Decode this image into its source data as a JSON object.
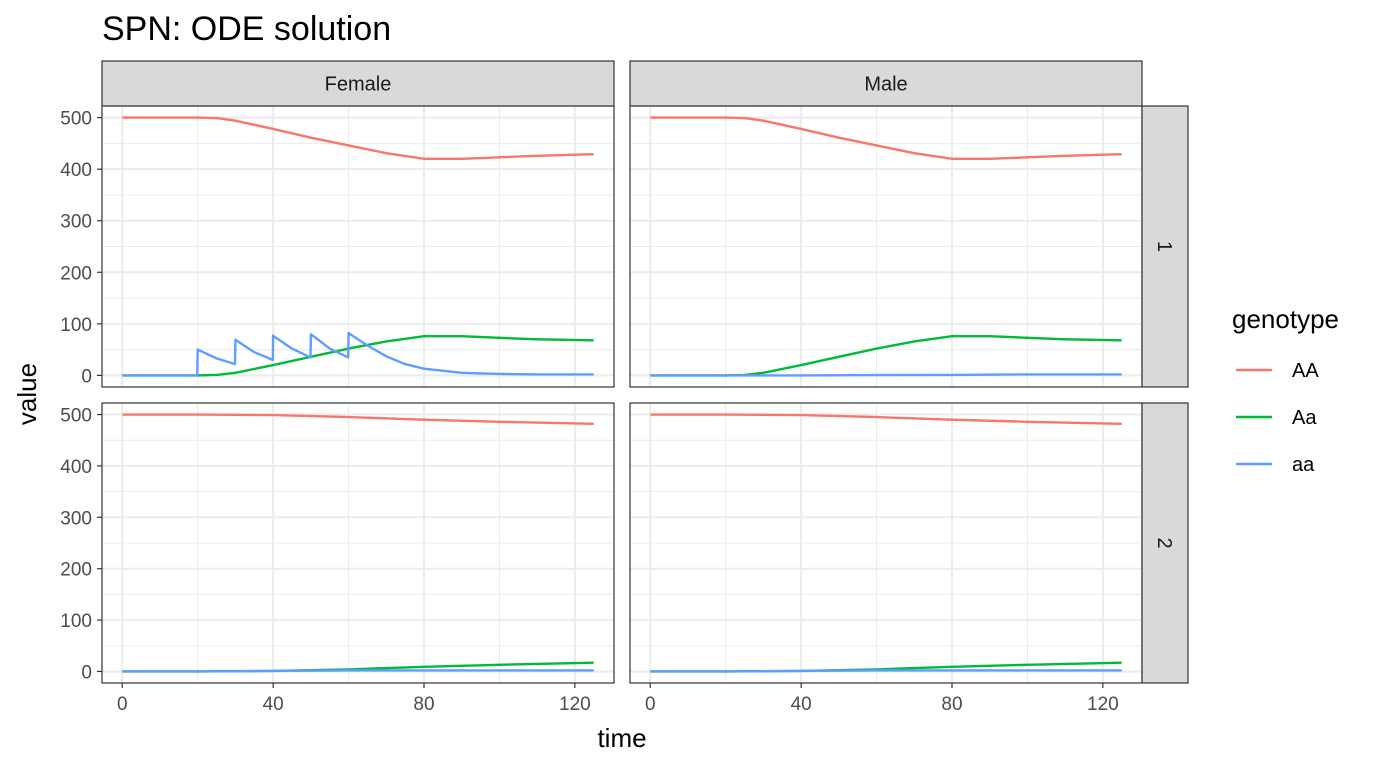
{
  "chart_data": {
    "type": "line",
    "title": "SPN: ODE solution",
    "xlabel": "time",
    "ylabel": "value",
    "xlim": [
      0,
      125
    ],
    "ylim": [
      0,
      500
    ],
    "x_ticks": [
      0,
      40,
      80,
      120
    ],
    "y_ticks": [
      0,
      100,
      200,
      300,
      400,
      500
    ],
    "grid": true,
    "legend": {
      "title": "genotype",
      "position": "right",
      "entries": [
        {
          "name": "AA",
          "color": "#F8766D"
        },
        {
          "name": "Aa",
          "color": "#00BA38"
        },
        {
          "name": "aa",
          "color": "#619CFF"
        }
      ]
    },
    "facet_cols": [
      "Female",
      "Male"
    ],
    "facet_rows": [
      "1",
      "2"
    ],
    "panels": [
      {
        "col": "Female",
        "row": "1",
        "series": [
          {
            "name": "AA",
            "x": [
              0,
              10,
              20,
              25,
              30,
              40,
              50,
              60,
              70,
              80,
              90,
              100,
              110,
              125
            ],
            "values": [
              500,
              500,
              500,
              499,
              494,
              478,
              461,
              446,
              431,
              420,
              420,
              423,
              426,
              429
            ]
          },
          {
            "name": "Aa",
            "x": [
              0,
              10,
              20,
              25,
              30,
              40,
              50,
              60,
              70,
              80,
              90,
              100,
              110,
              125
            ],
            "values": [
              0,
              0,
              0,
              1,
              5,
              20,
              36,
              52,
              66,
              76,
              76,
              73,
              70,
              68
            ]
          },
          {
            "name": "aa",
            "x": [
              0,
              19.9,
              20,
              25,
              29.9,
              30,
              35,
              39.9,
              40,
              45,
              49.9,
              50,
              55,
              59.9,
              60,
              65,
              70,
              75,
              80,
              90,
              100,
              110,
              125
            ],
            "values": [
              0,
              0,
              50,
              33,
              22,
              69,
              45,
              30,
              77,
              52,
              35,
              80,
              52,
              35,
              82,
              58,
              37,
              22,
              13,
              5,
              3,
              2,
              2
            ]
          }
        ]
      },
      {
        "col": "Male",
        "row": "1",
        "series": [
          {
            "name": "AA",
            "x": [
              0,
              10,
              20,
              25,
              30,
              40,
              50,
              60,
              70,
              80,
              90,
              100,
              110,
              125
            ],
            "values": [
              500,
              500,
              500,
              499,
              494,
              478,
              461,
              446,
              431,
              420,
              420,
              423,
              426,
              429
            ]
          },
          {
            "name": "Aa",
            "x": [
              0,
              10,
              20,
              25,
              30,
              40,
              50,
              60,
              70,
              80,
              90,
              100,
              110,
              125
            ],
            "values": [
              0,
              0,
              0,
              1,
              5,
              20,
              36,
              52,
              66,
              76,
              76,
              73,
              70,
              68
            ]
          },
          {
            "name": "aa",
            "x": [
              0,
              20,
              40,
              60,
              80,
              100,
              125
            ],
            "values": [
              0,
              0,
              0,
              0.5,
              1,
              2,
              2
            ]
          }
        ]
      },
      {
        "col": "Female",
        "row": "2",
        "series": [
          {
            "name": "AA",
            "x": [
              0,
              20,
              40,
              60,
              80,
              100,
              125
            ],
            "values": [
              500,
              500,
              499,
              495,
              490,
              486,
              482
            ]
          },
          {
            "name": "Aa",
            "x": [
              0,
              20,
              40,
              60,
              80,
              100,
              125
            ],
            "values": [
              0,
              0,
              1,
              4,
              9,
              13,
              17
            ]
          },
          {
            "name": "aa",
            "x": [
              0,
              20,
              40,
              60,
              80,
              100,
              125
            ],
            "values": [
              0,
              0,
              1,
              2,
              2,
              2,
              2
            ]
          }
        ]
      },
      {
        "col": "Male",
        "row": "2",
        "series": [
          {
            "name": "AA",
            "x": [
              0,
              20,
              40,
              60,
              80,
              100,
              125
            ],
            "values": [
              500,
              500,
              499,
              495,
              490,
              486,
              482
            ]
          },
          {
            "name": "Aa",
            "x": [
              0,
              20,
              40,
              60,
              80,
              100,
              125
            ],
            "values": [
              0,
              0,
              1,
              4,
              9,
              13,
              17
            ]
          },
          {
            "name": "aa",
            "x": [
              0,
              20,
              40,
              60,
              80,
              100,
              125
            ],
            "values": [
              0,
              0,
              1,
              2,
              2,
              2,
              2
            ]
          }
        ]
      }
    ]
  }
}
